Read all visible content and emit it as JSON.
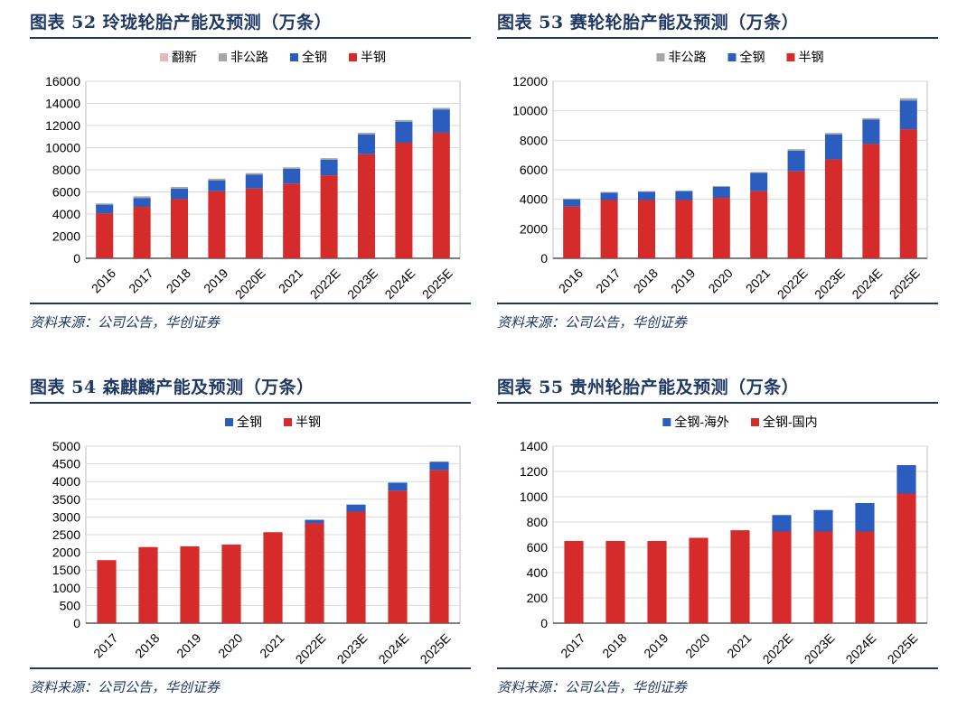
{
  "colors": {
    "title": "#1f3864",
    "semi_steel": "#d52b2b",
    "all_steel": "#2a5dbd",
    "off_road": "#a6a6a6",
    "retread": "#e6b8b7",
    "grid": "#d9d9d9"
  },
  "panels": [
    {
      "title": "图表 52  玲珑轮胎产能及预测（万条）",
      "source": "资料来源：公司公告，华创证券"
    },
    {
      "title": "图表 53  赛轮轮胎产能及预测（万条）",
      "source": "资料来源：公司公告，华创证券"
    },
    {
      "title": "图表 54  森麒麟产能及预测（万条）",
      "source": "资料来源：公司公告，华创证券"
    },
    {
      "title": "图表 55  贵州轮胎产能及预测（万条）",
      "source": "资料来源：公司公告，华创证券"
    }
  ],
  "chart_data": [
    {
      "type": "bar",
      "stacked": true,
      "categories": [
        "2016",
        "2017",
        "2018",
        "2019",
        "2020E",
        "2021",
        "2022E",
        "2023E",
        "2024E",
        "2025E"
      ],
      "series": [
        {
          "name": "半钢",
          "color_key": "semi_steel",
          "values": [
            4050,
            4650,
            5350,
            6050,
            6300,
            6750,
            7500,
            9400,
            10450,
            11350
          ]
        },
        {
          "name": "全钢",
          "color_key": "all_steel",
          "values": [
            800,
            800,
            950,
            1000,
            1250,
            1350,
            1400,
            1800,
            1900,
            2100
          ]
        },
        {
          "name": "非公路",
          "color_key": "off_road",
          "values": [
            100,
            150,
            150,
            150,
            150,
            120,
            150,
            150,
            150,
            150
          ]
        },
        {
          "name": "翻新",
          "color_key": "retread",
          "values": [
            0,
            0,
            0,
            0,
            0,
            0,
            0,
            0,
            0,
            0
          ]
        }
      ],
      "legend_order": [
        "翻新",
        "非公路",
        "全钢",
        "半钢"
      ],
      "legend_position": "top-center",
      "ylim": [
        0,
        16000
      ],
      "yticks": [
        0,
        2000,
        4000,
        6000,
        8000,
        10000,
        12000,
        14000,
        16000
      ],
      "grid": true
    },
    {
      "type": "bar",
      "stacked": true,
      "categories": [
        "2016",
        "2017",
        "2018",
        "2019",
        "2020",
        "2021",
        "2022E",
        "2023E",
        "2024E",
        "2025E"
      ],
      "series": [
        {
          "name": "半钢",
          "color_key": "semi_steel",
          "values": [
            3500,
            3950,
            3950,
            3950,
            4100,
            4550,
            5900,
            6700,
            7750,
            8750
          ]
        },
        {
          "name": "全钢",
          "color_key": "all_steel",
          "values": [
            500,
            500,
            550,
            600,
            750,
            1250,
            1400,
            1700,
            1650,
            1950
          ]
        },
        {
          "name": "非公路",
          "color_key": "off_road",
          "values": [
            50,
            50,
            50,
            50,
            50,
            50,
            100,
            100,
            100,
            150
          ]
        }
      ],
      "legend_order": [
        "非公路",
        "全钢",
        "半钢"
      ],
      "legend_position": "top-center",
      "ylim": [
        0,
        12000
      ],
      "yticks": [
        0,
        2000,
        4000,
        6000,
        8000,
        10000,
        12000
      ],
      "grid": true
    },
    {
      "type": "bar",
      "stacked": true,
      "categories": [
        "2017",
        "2018",
        "2019",
        "2020",
        "2021",
        "2022E",
        "2023E",
        "2024E",
        "2025E"
      ],
      "series": [
        {
          "name": "半钢",
          "color_key": "semi_steel",
          "values": [
            1780,
            2150,
            2170,
            2220,
            2570,
            2820,
            3150,
            3740,
            4320
          ]
        },
        {
          "name": "全钢",
          "color_key": "all_steel",
          "values": [
            0,
            0,
            0,
            0,
            0,
            100,
            200,
            230,
            240
          ]
        }
      ],
      "legend_order": [
        "全钢",
        "半钢"
      ],
      "legend_position": "top-center",
      "ylim": [
        0,
        5000
      ],
      "yticks": [
        0,
        500,
        1000,
        1500,
        2000,
        2500,
        3000,
        3500,
        4000,
        4500,
        5000
      ],
      "grid": true
    },
    {
      "type": "bar",
      "stacked": true,
      "categories": [
        "2017",
        "2018",
        "2019",
        "2020",
        "2021",
        "2022E",
        "2023E",
        "2024E",
        "2025E"
      ],
      "series": [
        {
          "name": "全钢-国内",
          "color_key": "semi_steel",
          "values": [
            650,
            650,
            650,
            675,
            735,
            725,
            725,
            725,
            1025
          ]
        },
        {
          "name": "全钢-海外",
          "color_key": "all_steel",
          "values": [
            0,
            0,
            0,
            0,
            0,
            130,
            170,
            225,
            225
          ]
        }
      ],
      "legend_order": [
        "全钢-海外",
        "全钢-国内"
      ],
      "legend_position": "top-center",
      "ylim": [
        0,
        1400
      ],
      "yticks": [
        0,
        200,
        400,
        600,
        800,
        1000,
        1200,
        1400
      ],
      "grid": true
    }
  ]
}
